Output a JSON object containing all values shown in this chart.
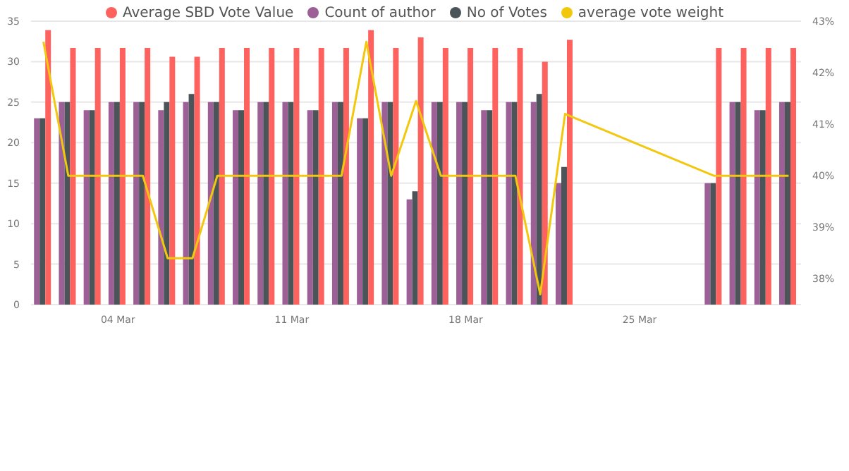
{
  "chart_data": {
    "type": "bar",
    "categories": [
      null,
      null,
      null,
      "04 Mar",
      null,
      null,
      null,
      null,
      null,
      null,
      "11 Mar",
      null,
      null,
      null,
      null,
      null,
      null,
      "18 Mar",
      null,
      null,
      null,
      null,
      null,
      null,
      "25 Mar",
      null,
      null,
      null,
      null,
      null,
      null
    ],
    "series": [
      {
        "name": "Count of author",
        "color": "#9c5f96",
        "values": [
          23,
          25,
          24,
          25,
          25,
          24,
          25,
          25,
          24,
          25,
          25,
          24,
          25,
          23,
          25,
          13,
          25,
          25,
          24,
          25,
          25,
          15,
          null,
          null,
          null,
          null,
          null,
          15,
          25,
          24,
          25
        ]
      },
      {
        "name": "No of Votes",
        "color": "#4a5459",
        "values": [
          23,
          25,
          24,
          25,
          25,
          25,
          26,
          25,
          24,
          25,
          25,
          24,
          25,
          23,
          25,
          14,
          25,
          25,
          24,
          25,
          26,
          17,
          null,
          null,
          null,
          null,
          null,
          15,
          25,
          24,
          25
        ]
      },
      {
        "name": "Average SBD Vote Value",
        "color": "#fd625e",
        "values": [
          33.9,
          31.7,
          31.7,
          31.7,
          31.7,
          30.6,
          30.6,
          31.7,
          31.7,
          31.7,
          31.7,
          31.7,
          31.7,
          33.9,
          31.7,
          33.0,
          31.7,
          31.7,
          31.7,
          31.7,
          30.0,
          32.7,
          null,
          null,
          null,
          null,
          null,
          31.7,
          31.7,
          31.7,
          31.7
        ]
      },
      {
        "name": "average vote weight",
        "type": "line",
        "axis": "y2",
        "color": "#f2c80f",
        "values": [
          42.6,
          40,
          40,
          40,
          40,
          38.4,
          38.4,
          40,
          40,
          40,
          40,
          40,
          40,
          42.6,
          40,
          41.45,
          40,
          40,
          40,
          40,
          37.7,
          41.2,
          null,
          null,
          null,
          null,
          null,
          40,
          40,
          40,
          40
        ]
      }
    ],
    "ylim": [
      0,
      35
    ],
    "yticks": [
      0,
      5,
      10,
      15,
      20,
      25,
      30,
      35
    ],
    "y2lim": [
      37.5,
      43
    ],
    "y2ticks": [
      {
        "value": 38,
        "label": "38%"
      },
      {
        "value": 39,
        "label": "39%"
      },
      {
        "value": 40,
        "label": "40%"
      },
      {
        "value": 41,
        "label": "41%"
      },
      {
        "value": 42,
        "label": "42%"
      },
      {
        "value": 43,
        "label": "43%"
      }
    ],
    "grid": "y",
    "legend": "top",
    "marker": "none",
    "line_style": "solid"
  }
}
